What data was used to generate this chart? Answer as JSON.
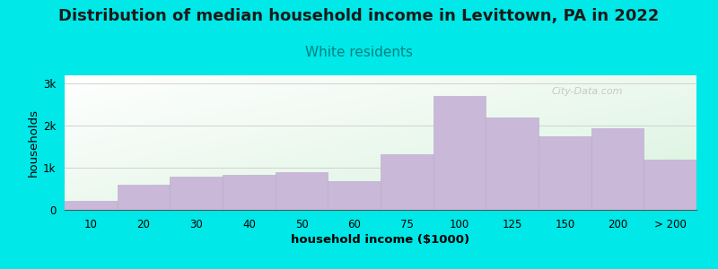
{
  "title": "Distribution of median household income in Levittown, PA in 2022",
  "subtitle": "White residents",
  "xlabel": "household income ($1000)",
  "ylabel": "households",
  "background_color": "#00e8e8",
  "bar_color": "#c9b8d8",
  "bar_edge_color": "#b8a8cc",
  "categories": [
    "10",
    "20",
    "30",
    "40",
    "50",
    "60",
    "75",
    "100",
    "125",
    "150",
    "200",
    "> 200"
  ],
  "values": [
    220,
    600,
    780,
    840,
    900,
    680,
    1320,
    2700,
    2200,
    1750,
    1950,
    1200
  ],
  "ylim": [
    0,
    3200
  ],
  "yticks": [
    0,
    1000,
    2000,
    3000
  ],
  "ytick_labels": [
    "0",
    "1k",
    "2k",
    "3k"
  ],
  "title_fontsize": 13,
  "subtitle_fontsize": 11,
  "subtitle_color": "#008080",
  "axis_label_fontsize": 9.5,
  "watermark": "City-Data.com",
  "gradient_left_top": "#d4edda",
  "gradient_right_bottom": "#f8fff8"
}
